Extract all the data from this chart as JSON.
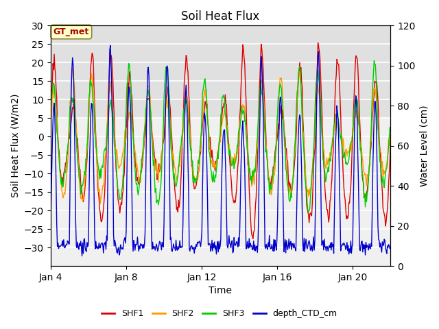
{
  "title": "Soil Heat Flux",
  "xlabel": "Time",
  "ylabel_left": "Soil Heat Flux (W/m2)",
  "ylabel_right": "Water Level (cm)",
  "ylim_left": [
    -35,
    30
  ],
  "ylim_right": [
    0,
    120
  ],
  "yticks_left": [
    -30,
    -25,
    -20,
    -15,
    -10,
    -5,
    0,
    5,
    10,
    15,
    20,
    25,
    30
  ],
  "yticks_right": [
    0,
    20,
    40,
    60,
    80,
    100,
    120
  ],
  "xtick_labels": [
    "Jan 4",
    "Jan 8",
    "Jan 12",
    "Jan 16",
    "Jan 20"
  ],
  "xtick_positions": [
    3,
    7,
    11,
    15,
    19
  ],
  "colors": {
    "SHF1": "#dd0000",
    "SHF2": "#ff9900",
    "SHF3": "#00cc00",
    "depth_CTD_cm": "#0000cc"
  },
  "legend_labels": [
    "SHF1",
    "SHF2",
    "SHF3",
    "depth_CTD_cm"
  ],
  "annotation_text": "GT_met",
  "annotation_color": "#aa0000",
  "annotation_bg": "#ffffcc",
  "annotation_edge": "#888833",
  "bg_band_ymin": 5,
  "bg_band_ymax": 30,
  "bg_band_color": "#e0e0e0",
  "line_width": 1.0,
  "figsize": [
    6.4,
    4.8
  ],
  "dpi": 100
}
